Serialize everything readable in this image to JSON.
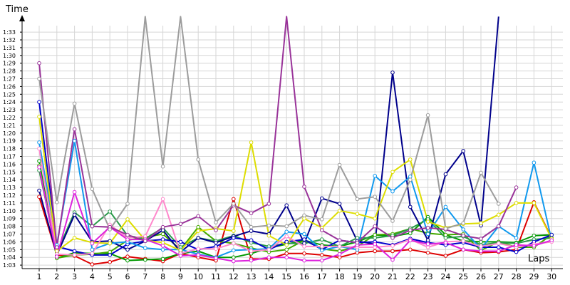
{
  "chart_data": {
    "type": "line",
    "ylabel": "Time",
    "xlabel": "Laps",
    "x": [
      1,
      2,
      3,
      4,
      5,
      6,
      7,
      8,
      9,
      10,
      11,
      12,
      13,
      14,
      15,
      16,
      17,
      18,
      19,
      20,
      21,
      22,
      23,
      24,
      25,
      26,
      27,
      28,
      29,
      30
    ],
    "y_ticks": [
      "1:03",
      "1:04",
      "1:05",
      "1:06",
      "1:07",
      "1:08",
      "1:09",
      "1:10",
      "1:11",
      "1:12",
      "1:13",
      "1:14",
      "1:15",
      "1:16",
      "1:17",
      "1:18",
      "1:19",
      "1:20",
      "1:21",
      "1:22",
      "1:23",
      "1:24",
      "1:25",
      "1:26",
      "1:27",
      "1:28",
      "1:29",
      "1:30",
      "1:31",
      "1:32",
      "1:33"
    ],
    "ylim": [
      62,
      94
    ],
    "grid": true,
    "series": [
      {
        "color": "#dd0000",
        "values": [
          71.8,
          64.3,
          64.2,
          63.1,
          63.4,
          64.1,
          63.8,
          63.5,
          64.5,
          64.0,
          63.6,
          71.5,
          63.8,
          63.8,
          64.5,
          64.5,
          64.3,
          64.0,
          64.6,
          64.8,
          64.8,
          65.0,
          64.6,
          64.2,
          65.0,
          64.6,
          64.7,
          65.0,
          71.1,
          66.5
        ]
      },
      {
        "color": "#009900",
        "values": [
          76.4,
          63.9,
          64.6,
          64.5,
          64.5,
          63.6,
          63.7,
          63.8,
          64.5,
          64.8,
          64.0,
          64.0,
          64.5,
          65.2,
          65.7,
          66.2,
          65.6,
          65.4,
          66.0,
          66.9,
          66.7,
          67.1,
          69.2,
          66.9,
          66.1,
          66.0,
          66.0,
          65.9,
          66.8,
          66.9
        ]
      },
      {
        "color": "#44aa00",
        "values": [
          75.8,
          63.9,
          64.3,
          64.4,
          64.7,
          66.2,
          66.6,
          67.0,
          65.0,
          67.9,
          66.1,
          65.8,
          65.2,
          64.7,
          65.0,
          66.2,
          65.1,
          64.8,
          65.4,
          66.9,
          67.0,
          67.7,
          67.1,
          66.9,
          67.0,
          64.9,
          66.0,
          65.3,
          65.3,
          66.9
        ]
      },
      {
        "color": "#2a9a4a",
        "values": [
          75.2,
          64.6,
          69.8,
          68.0,
          69.9,
          66.8,
          66.4,
          67.8,
          65.3,
          66.5,
          66.1,
          66.8,
          65.9,
          65.4,
          65.8,
          65.8,
          66.3,
          65.4,
          66.5,
          66.5,
          66.8,
          67.7,
          68.9,
          66.5,
          66.7,
          65.6,
          65.9,
          65.8,
          66.3,
          66.5
        ]
      },
      {
        "color": "#00008b",
        "values": [
          72.6,
          64.3,
          69.5,
          66.0,
          66.1,
          65.0,
          66.1,
          67.5,
          64.7,
          66.5,
          65.9,
          66.7,
          67.4,
          67.0,
          70.7,
          65.8,
          71.6,
          70.9,
          66.1,
          65.7,
          87.8,
          70.5,
          66.2,
          74.7,
          77.7,
          68.1,
          95.0,
          null,
          null,
          null
        ]
      },
      {
        "color": "#0000cc",
        "values": [
          84.0,
          65.4,
          64.8,
          64.3,
          64.3,
          65.7,
          66.1,
          66.3,
          66.0,
          65.0,
          65.4,
          66.5,
          66.2,
          65.0,
          66.0,
          66.3,
          65.0,
          66.2,
          65.9,
          66.0,
          65.6,
          66.4,
          65.9,
          65.6,
          65.9,
          65.3,
          65.3,
          64.7,
          66.0,
          66.9
        ]
      },
      {
        "color": "#1199ee",
        "values": [
          78.8,
          65.6,
          79.0,
          65.0,
          65.8,
          66.0,
          65.2,
          65.0,
          65.0,
          64.4,
          64.0,
          64.9,
          65.0,
          65.1,
          67.3,
          67.0,
          64.9,
          65.4,
          65.0,
          74.5,
          72.5,
          74.4,
          67.0,
          70.5,
          67.6,
          65.1,
          68.0,
          66.5,
          76.2,
          66.2
        ]
      },
      {
        "color": "#dddd00",
        "values": [
          82.1,
          64.8,
          66.5,
          65.9,
          65.8,
          68.9,
          66.2,
          65.9,
          64.9,
          67.4,
          67.7,
          67.4,
          78.8,
          66.8,
          65.6,
          69.0,
          67.8,
          70.0,
          69.6,
          69.0,
          75.0,
          76.6,
          68.6,
          67.8,
          68.3,
          68.4,
          69.5,
          71.0,
          71.0,
          66.4
        ]
      },
      {
        "color": "#ff88cc",
        "values": [
          78.0,
          64.4,
          64.3,
          64.5,
          68.2,
          66.5,
          66.7,
          71.5,
          64.5,
          65.1,
          65.1,
          65.8,
          64.8,
          65.0,
          66.7,
          65.4,
          65.4,
          65.4,
          65.3,
          65.3,
          65.5,
          66.3,
          65.3,
          66.0,
          66.1,
          65.4,
          65.8,
          65.3,
          65.7,
          66.0
        ]
      },
      {
        "color": "#dd22dd",
        "values": [
          75.6,
          64.1,
          72.4,
          65.8,
          67.9,
          66.3,
          66.3,
          65.5,
          64.2,
          64.3,
          63.9,
          63.5,
          63.6,
          64.0,
          64.0,
          63.6,
          63.6,
          64.4,
          65.6,
          65.7,
          63.7,
          66.2,
          65.7,
          65.9,
          65.0,
          64.8,
          64.8,
          65.6,
          65.5,
          66.2
        ]
      },
      {
        "color": "#993399",
        "values": [
          89.0,
          65.3,
          80.5,
          68.0,
          67.9,
          66.9,
          66.1,
          67.9,
          68.3,
          69.3,
          67.5,
          70.7,
          69.7,
          70.9,
          95.0,
          73.1,
          67.5,
          66.2,
          65.9,
          68.0,
          66.5,
          67.5,
          67.8,
          67.6,
          66.8,
          66.4,
          68.0,
          73.0,
          null,
          null
        ]
      },
      {
        "color": "#9c9c9c",
        "values": [
          87.0,
          71.1,
          83.8,
          72.8,
          67.6,
          70.9,
          95.0,
          75.7,
          95.0,
          76.6,
          68.5,
          70.9,
          67.9,
          68.1,
          68.0,
          69.4,
          68.9,
          75.9,
          71.5,
          71.8,
          68.7,
          74.0,
          82.3,
          67.7,
          68.4,
          74.9,
          70.9,
          null,
          null,
          null
        ]
      }
    ]
  }
}
